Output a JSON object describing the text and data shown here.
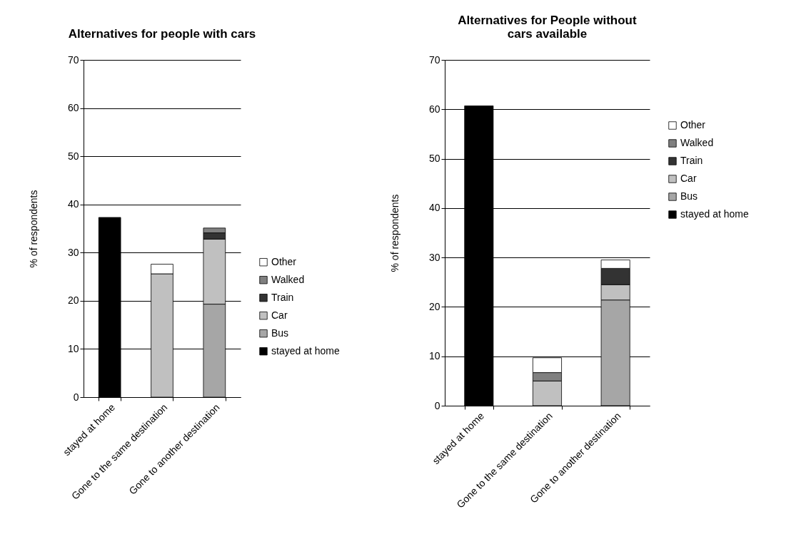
{
  "chart_data": [
    {
      "type": "bar",
      "title": "Alternatives for people with cars",
      "ylabel": "% of respondents",
      "categories": [
        "stayed at home",
        "Gone to the same destination",
        "Gone to another destination"
      ],
      "stacked": true,
      "ylim": [
        0,
        70
      ],
      "yticks": [
        0,
        10,
        20,
        30,
        40,
        50,
        60,
        70
      ],
      "grid": "y",
      "legend": "right",
      "series": [
        {
          "name": "stayed at home",
          "color": "#000000",
          "values": [
            37.3,
            null,
            null
          ]
        },
        {
          "name": "Bus",
          "color": "#a6a6a6",
          "values": [
            null,
            null,
            19.3
          ]
        },
        {
          "name": "Car",
          "color": "#c0c0c0",
          "values": [
            null,
            25.6,
            13.5
          ]
        },
        {
          "name": "Train",
          "color": "#333333",
          "values": [
            null,
            null,
            1.3
          ]
        },
        {
          "name": "Walked",
          "color": "#808080",
          "values": [
            null,
            null,
            1.0
          ]
        },
        {
          "name": "Other",
          "color": "#ffffff",
          "values": [
            null,
            2.0,
            null
          ]
        }
      ]
    },
    {
      "type": "bar",
      "title": "Alternatives for People without cars available",
      "ylabel": "% of respondents",
      "categories": [
        "stayed at home",
        "Gone to the same destination",
        "Gone to another destination"
      ],
      "stacked": true,
      "ylim": [
        0,
        70
      ],
      "yticks": [
        0,
        10,
        20,
        30,
        40,
        50,
        60,
        70
      ],
      "grid": "y",
      "legend": "top right",
      "series": [
        {
          "name": "stayed at home",
          "color": "#000000",
          "values": [
            60.7,
            null,
            null
          ]
        },
        {
          "name": "Bus",
          "color": "#a6a6a6",
          "values": [
            null,
            null,
            21.4
          ]
        },
        {
          "name": "Car",
          "color": "#c0c0c0",
          "values": [
            null,
            5.0,
            3.1
          ]
        },
        {
          "name": "Train",
          "color": "#333333",
          "values": [
            null,
            null,
            3.3
          ]
        },
        {
          "name": "Walked",
          "color": "#808080",
          "values": [
            null,
            1.7,
            null
          ]
        },
        {
          "name": "Other",
          "color": "#ffffff",
          "values": [
            null,
            3.0,
            1.7
          ]
        }
      ]
    }
  ]
}
